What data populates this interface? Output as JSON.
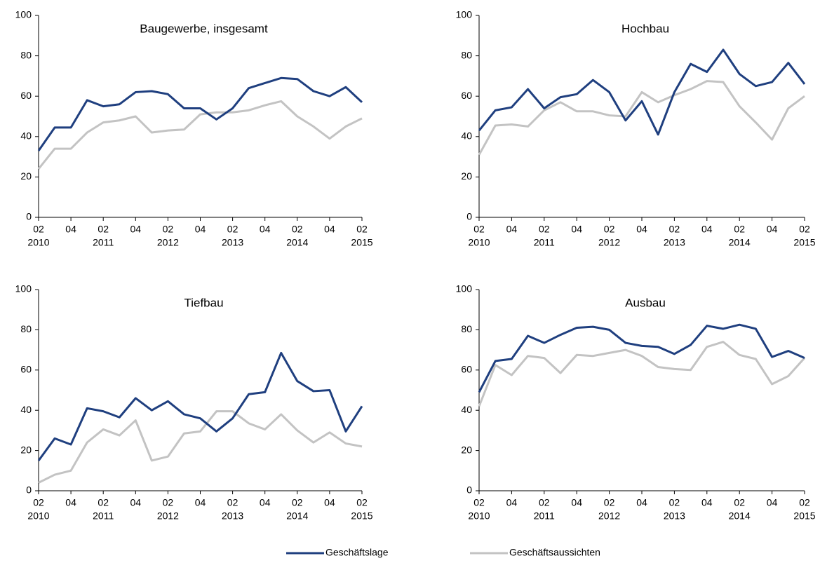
{
  "chart_data": [
    {
      "type": "line",
      "title": "Baugewerbe, insgesamt",
      "categories": [
        "02",
        null,
        "04",
        null,
        "02",
        null,
        "04",
        null,
        "02",
        null,
        "04",
        null,
        "02",
        null,
        "04",
        null,
        "02",
        null,
        "04",
        null,
        "02"
      ],
      "years": [
        "2010",
        null,
        null,
        null,
        "2011",
        null,
        null,
        null,
        "2012",
        null,
        null,
        null,
        "2013",
        null,
        null,
        null,
        "2014",
        null,
        null,
        null,
        "2015"
      ],
      "ylim": [
        0,
        100
      ],
      "yticks": [
        0,
        20,
        40,
        60,
        80,
        100
      ],
      "series": [
        {
          "name": "Geschäftslage",
          "color": "#1f3f7f",
          "values": [
            33,
            44.5,
            44.5,
            58,
            55,
            56,
            62,
            62.5,
            61,
            54,
            54,
            48.5,
            54,
            64,
            66.5,
            69,
            68.5,
            62.5,
            60,
            64.5,
            57
          ]
        },
        {
          "name": "Geschäftsaussichten",
          "color": "#c3c3c3",
          "values": [
            24,
            34,
            34,
            42,
            47,
            48,
            50,
            42,
            43,
            43.5,
            51,
            52,
            52,
            53,
            55.5,
            57.5,
            50,
            45,
            39,
            45,
            49
          ]
        }
      ]
    },
    {
      "type": "line",
      "title": "Hochbau",
      "categories": [
        "02",
        null,
        "04",
        null,
        "02",
        null,
        "04",
        null,
        "02",
        null,
        "04",
        null,
        "02",
        null,
        "04",
        null,
        "02",
        null,
        "04",
        null,
        "02"
      ],
      "years": [
        "2010",
        null,
        null,
        null,
        "2011",
        null,
        null,
        null,
        "2012",
        null,
        null,
        null,
        "2013",
        null,
        null,
        null,
        "2014",
        null,
        null,
        null,
        "2015"
      ],
      "ylim": [
        0,
        100
      ],
      "yticks": [
        0,
        20,
        40,
        60,
        80,
        100
      ],
      "series": [
        {
          "name": "Geschäftslage",
          "color": "#1f3f7f",
          "values": [
            43,
            53,
            54.5,
            63.5,
            54,
            59.5,
            61,
            68,
            62,
            48,
            57.5,
            41,
            62,
            76,
            72,
            83,
            71,
            65,
            67,
            76.5,
            66
          ]
        },
        {
          "name": "Geschäftsaussichten",
          "color": "#c3c3c3",
          "values": [
            31,
            45.5,
            46,
            45,
            53,
            57,
            52.5,
            52.5,
            50.5,
            50,
            62,
            57,
            60.5,
            63.5,
            67.5,
            67,
            55,
            47,
            38.5,
            54,
            60
          ]
        }
      ]
    },
    {
      "type": "line",
      "title": "Tiefbau",
      "categories": [
        "02",
        null,
        "04",
        null,
        "02",
        null,
        "04",
        null,
        "02",
        null,
        "04",
        null,
        "02",
        null,
        "04",
        null,
        "02",
        null,
        "04",
        null,
        "02"
      ],
      "years": [
        "2010",
        null,
        null,
        null,
        "2011",
        null,
        null,
        null,
        "2012",
        null,
        null,
        null,
        "2013",
        null,
        null,
        null,
        "2014",
        null,
        null,
        null,
        "2015"
      ],
      "ylim": [
        0,
        100
      ],
      "yticks": [
        0,
        20,
        40,
        60,
        80,
        100
      ],
      "series": [
        {
          "name": "Geschäftslage",
          "color": "#1f3f7f",
          "values": [
            15,
            26,
            23,
            41,
            39.5,
            36.5,
            46,
            40,
            44.5,
            38,
            36,
            29.5,
            36,
            48,
            49,
            68.5,
            54.5,
            49.5,
            50,
            29.5,
            42
          ]
        },
        {
          "name": "Geschäftsaussichten",
          "color": "#c3c3c3",
          "values": [
            4,
            8,
            10,
            24,
            30.5,
            27.5,
            35,
            15,
            17,
            28.5,
            29.5,
            39.5,
            39.5,
            33.5,
            30.5,
            38,
            30,
            24,
            29,
            23.5,
            22
          ]
        }
      ]
    },
    {
      "type": "line",
      "title": "Ausbau",
      "categories": [
        "02",
        null,
        "04",
        null,
        "02",
        null,
        "04",
        null,
        "02",
        null,
        "04",
        null,
        "02",
        null,
        "04",
        null,
        "02",
        null,
        "04",
        null,
        "02"
      ],
      "years": [
        "2010",
        null,
        null,
        null,
        "2011",
        null,
        null,
        null,
        "2012",
        null,
        null,
        null,
        "2013",
        null,
        null,
        null,
        "2014",
        null,
        null,
        null,
        "2015"
      ],
      "ylim": [
        0,
        100
      ],
      "yticks": [
        0,
        20,
        40,
        60,
        80,
        100
      ],
      "series": [
        {
          "name": "Geschäftslage",
          "color": "#1f3f7f",
          "values": [
            49,
            64.5,
            65.5,
            77,
            73.5,
            77.5,
            81,
            81.5,
            80,
            73.5,
            72,
            71.5,
            68,
            72.5,
            82,
            80.5,
            82.5,
            80.5,
            66.5,
            69.5,
            66
          ]
        },
        {
          "name": "Geschäftsaussichten",
          "color": "#c3c3c3",
          "values": [
            42,
            62.5,
            57.5,
            67,
            66,
            58.5,
            67.5,
            67,
            68.5,
            70,
            67,
            61.5,
            60.5,
            60,
            71.5,
            74,
            67.5,
            65.5,
            53,
            57,
            66
          ]
        }
      ]
    }
  ]
}
